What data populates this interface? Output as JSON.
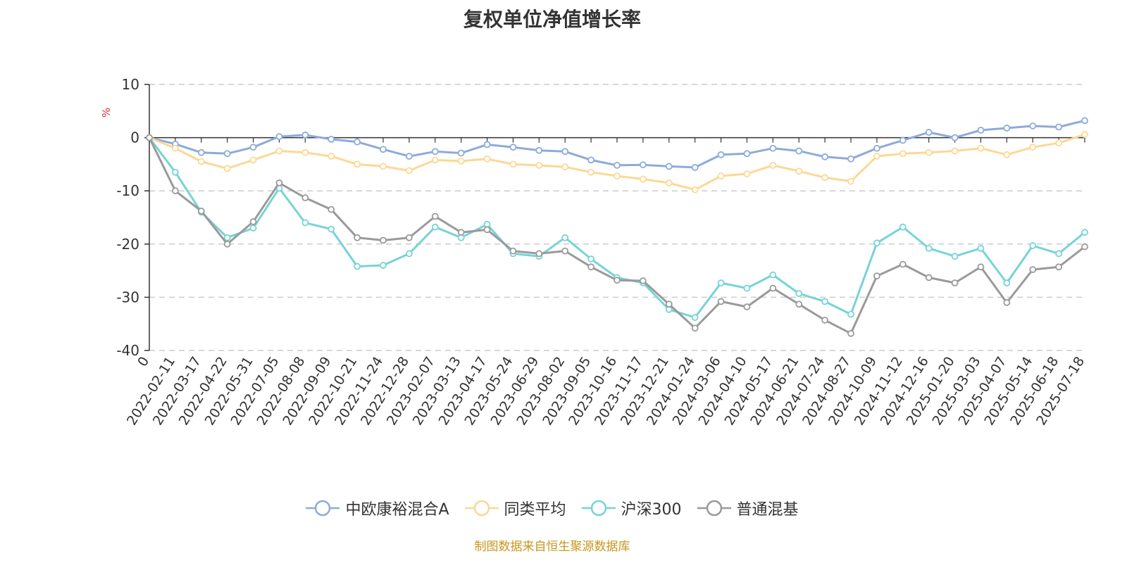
{
  "colors": {
    "series": [
      "#8eaadb",
      "#fcd894",
      "#76d4d6",
      "#9a9a9a"
    ],
    "axis": "#333333",
    "grid": "#cccccc",
    "unit": "#e8262a",
    "source": "#c8961e"
  },
  "chart_data": {
    "type": "line",
    "title": "复权单位净值增长率",
    "ylabel": "%",
    "ylim": [
      -40,
      10
    ],
    "yticks": [
      10,
      0,
      -10,
      -20,
      -30,
      -40
    ],
    "grid": true,
    "legend_position": "bottom",
    "x_tick_labels": [
      "0",
      "2022-02-11",
      "2022-03-17",
      "2022-04-22",
      "2022-05-31",
      "2022-07-05",
      "2022-08-08",
      "2022-09-09",
      "2022-10-21",
      "2022-11-24",
      "2022-12-28",
      "2023-02-07",
      "2023-03-13",
      "2023-04-17",
      "2023-05-24",
      "2023-06-29",
      "2023-08-02",
      "2023-09-05",
      "2023-10-16",
      "2023-11-17",
      "2023-12-21",
      "2024-01-24",
      "2024-03-06",
      "2024-04-10",
      "2024-05-17",
      "2024-06-21",
      "2024-07-24",
      "2024-08-27",
      "2024-10-09",
      "2024-11-12",
      "2024-12-16",
      "2025-01-20",
      "2025-03-03",
      "2025-04-07",
      "2025-05-14",
      "2025-06-18",
      "2025-07-18"
    ],
    "series": [
      {
        "name": "中欧康裕混合A",
        "values": [
          0,
          -1.2,
          -2.8,
          -3.0,
          -1.8,
          0.2,
          0.5,
          -0.3,
          -0.8,
          -2.2,
          -3.5,
          -2.6,
          -2.9,
          -1.3,
          -1.8,
          -2.4,
          -2.6,
          -4.2,
          -5.2,
          -5.1,
          -5.4,
          -5.6,
          -3.2,
          -3.0,
          -2.0,
          -2.5,
          -3.6,
          -4.0,
          -2.0,
          -0.5,
          1.0,
          0.0,
          1.4,
          1.8,
          2.2,
          2.0,
          3.2
        ]
      },
      {
        "name": "同类平均",
        "values": [
          0,
          -2.0,
          -4.5,
          -5.8,
          -4.2,
          -2.5,
          -2.8,
          -3.5,
          -5.0,
          -5.4,
          -6.2,
          -4.2,
          -4.4,
          -4.0,
          -5.0,
          -5.2,
          -5.5,
          -6.5,
          -7.2,
          -7.8,
          -8.5,
          -9.8,
          -7.2,
          -6.8,
          -5.2,
          -6.3,
          -7.5,
          -8.2,
          -3.5,
          -3.0,
          -2.8,
          -2.5,
          -2.0,
          -3.2,
          -1.8,
          -1.0,
          0.6
        ]
      },
      {
        "name": "沪深300",
        "values": [
          0,
          -6.5,
          -14.0,
          -18.8,
          -17.0,
          -9.5,
          -16.0,
          -17.2,
          -24.2,
          -24.0,
          -21.8,
          -16.8,
          -18.8,
          -16.3,
          -21.8,
          -22.3,
          -18.8,
          -22.8,
          -26.3,
          -27.3,
          -32.3,
          -33.8,
          -27.3,
          -28.3,
          -25.8,
          -29.3,
          -30.8,
          -33.2,
          -19.8,
          -16.8,
          -20.8,
          -22.3,
          -20.8,
          -27.3,
          -20.3,
          -21.8,
          -17.8
        ]
      },
      {
        "name": "普通混基",
        "values": [
          0,
          -10.0,
          -13.8,
          -20.0,
          -15.8,
          -8.5,
          -11.3,
          -13.5,
          -18.8,
          -19.3,
          -18.8,
          -14.8,
          -17.8,
          -17.3,
          -21.3,
          -21.8,
          -21.3,
          -24.3,
          -26.8,
          -26.9,
          -31.3,
          -35.8,
          -30.8,
          -31.8,
          -28.3,
          -31.3,
          -34.3,
          -36.8,
          -26.0,
          -23.8,
          -26.3,
          -27.3,
          -24.3,
          -31.0,
          -24.8,
          -24.3,
          -20.5
        ]
      }
    ]
  },
  "source_note": "制图数据来自恒生聚源数据库"
}
